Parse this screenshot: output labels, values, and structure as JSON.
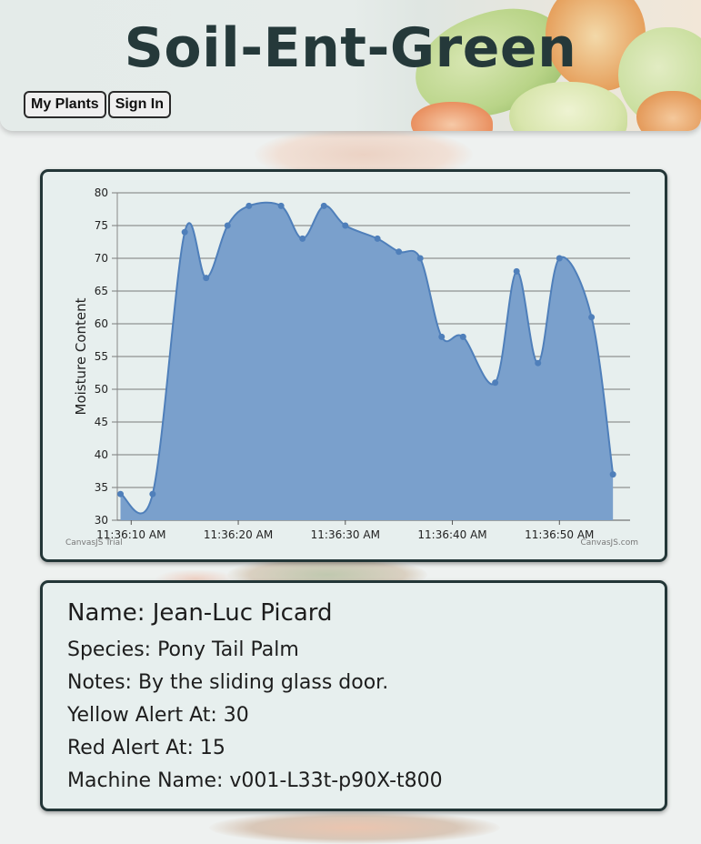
{
  "header": {
    "title": "Soil-Ent-Green",
    "nav": [
      {
        "label": "My Plants"
      },
      {
        "label": "Sign In"
      }
    ]
  },
  "chart_data": {
    "type": "area",
    "ylabel": "Moisture Content",
    "xlabel": "",
    "ylim": [
      30,
      80
    ],
    "yticks": [
      30,
      35,
      40,
      45,
      50,
      55,
      60,
      65,
      70,
      75,
      80
    ],
    "xticks": [
      {
        "t": 10,
        "label": "11:36:10 AM"
      },
      {
        "t": 20,
        "label": "11:36:20 AM"
      },
      {
        "t": 30,
        "label": "11:36:30 AM"
      },
      {
        "t": 40,
        "label": "11:36:40 AM"
      },
      {
        "t": 50,
        "label": "11:36:50 AM"
      }
    ],
    "xlim_seconds_after_11_36_00": [
      8.7,
      56.6
    ],
    "points": [
      {
        "t": 9,
        "y": 34
      },
      {
        "t": 12,
        "y": 34
      },
      {
        "t": 15,
        "y": 74
      },
      {
        "t": 17,
        "y": 67
      },
      {
        "t": 19,
        "y": 75
      },
      {
        "t": 21,
        "y": 78
      },
      {
        "t": 24,
        "y": 78
      },
      {
        "t": 26,
        "y": 73
      },
      {
        "t": 28,
        "y": 78
      },
      {
        "t": 30,
        "y": 75
      },
      {
        "t": 33,
        "y": 73
      },
      {
        "t": 35,
        "y": 71
      },
      {
        "t": 37,
        "y": 70
      },
      {
        "t": 39,
        "y": 58
      },
      {
        "t": 41,
        "y": 58
      },
      {
        "t": 44,
        "y": 51
      },
      {
        "t": 46,
        "y": 68
      },
      {
        "t": 48,
        "y": 54
      },
      {
        "t": 50,
        "y": 70
      },
      {
        "t": 53,
        "y": 61
      },
      {
        "t": 55,
        "y": 37
      }
    ],
    "grid": true,
    "colors": {
      "fill": "#7aa0cc",
      "line": "#4f7fba",
      "grid": "#555555"
    },
    "credits": {
      "left": "CanvasJS Trial",
      "right": "CanvasJS.com"
    }
  },
  "plant": {
    "name": "Name: Jean-Luc Picard",
    "species": "Species: Pony Tail Palm",
    "notes": "Notes: By the sliding glass door.",
    "yellow_alert": "Yellow Alert At: 30",
    "red_alert": "Red Alert At: 15",
    "machine_name": "Machine Name: v001-L33t-p90X-t800"
  }
}
